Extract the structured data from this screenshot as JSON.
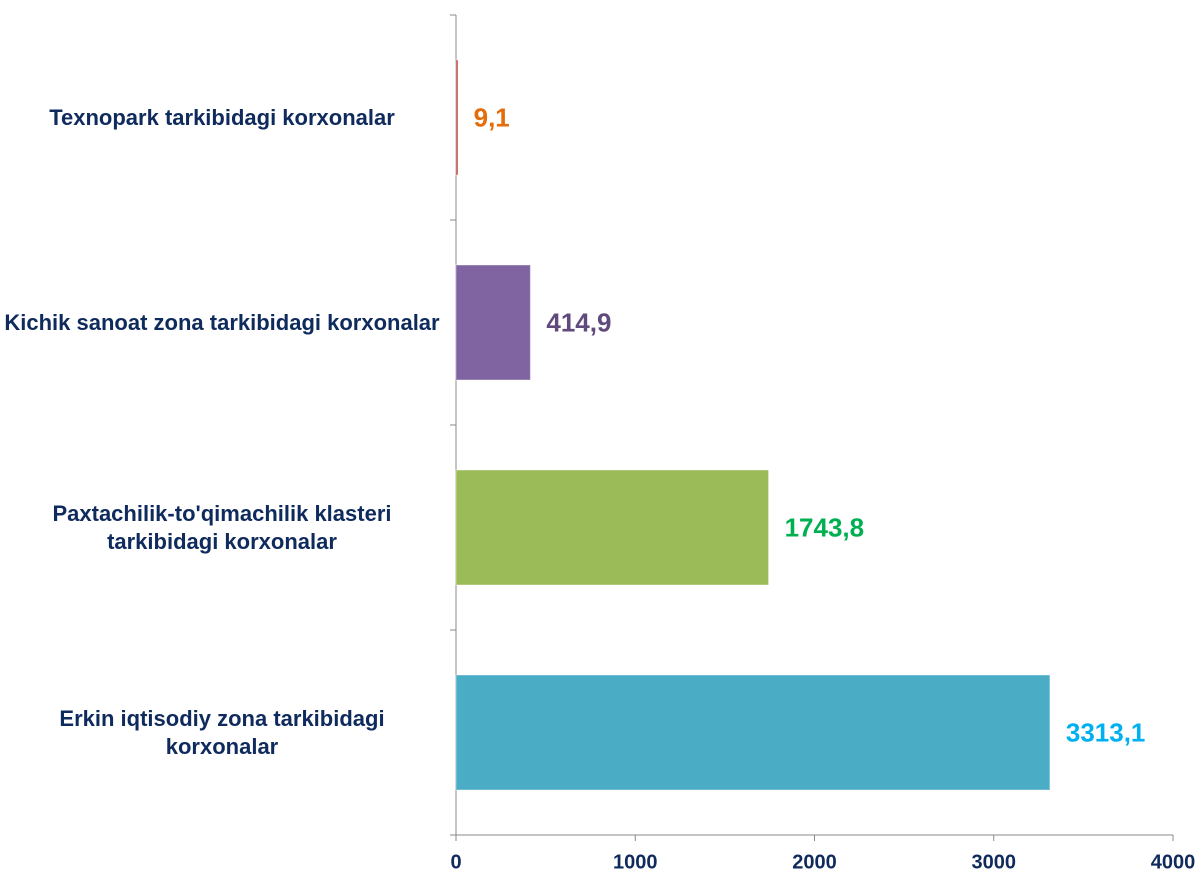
{
  "chart_data": {
    "type": "bar",
    "orientation": "horizontal",
    "categories": [
      "Texnopark tarkibidagi korxonalar",
      "Kichik sanoat zona tarkibidagi korxonalar",
      "Paxtachilik-to'qimachilik klasteri tarkibidagi korxonalar",
      "Erkin iqtisodiy zona tarkibidagi korxonalar"
    ],
    "values": [
      9.1,
      414.9,
      1743.8,
      3313.1
    ],
    "value_labels": [
      "9,1",
      "414,9",
      "1743,8",
      "3313,1"
    ],
    "colors": [
      "#c0504d",
      "#8064a2",
      "#9bbb59",
      "#4bacc6"
    ],
    "label_colors": [
      "#e46c0a",
      "#604a7b",
      "#00b050",
      "#00b0f0"
    ],
    "xlim": [
      0,
      4000
    ],
    "xticks": [
      0,
      1000,
      2000,
      3000,
      4000
    ]
  }
}
